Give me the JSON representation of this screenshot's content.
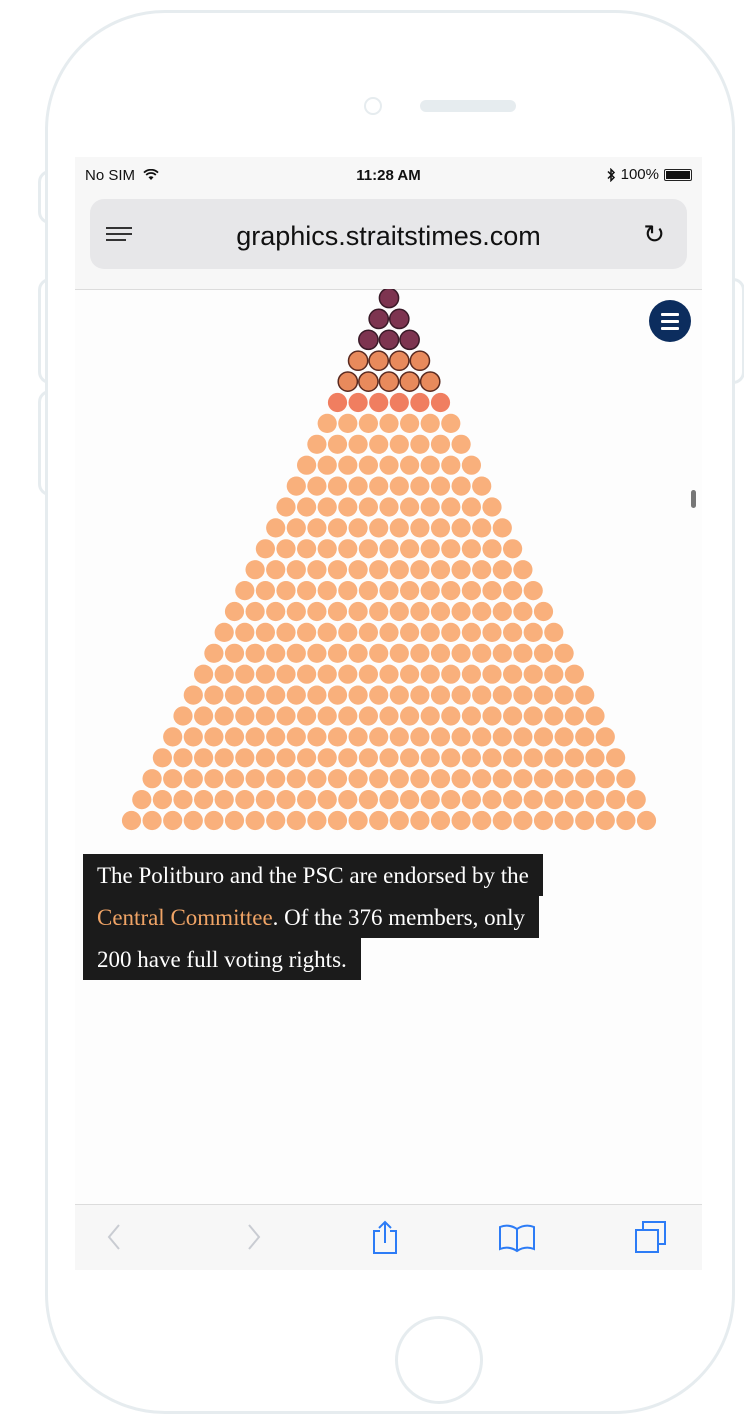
{
  "status_bar": {
    "carrier": "No SIM",
    "time": "11:28 AM",
    "battery": "100%"
  },
  "browser": {
    "url": "graphics.straitstimes.com"
  },
  "icons": {
    "wifi": "wifi-icon",
    "bluetooth": "bluetooth-icon",
    "battery": "battery-icon",
    "reader": "reader-mode-icon",
    "reload": "reload-icon",
    "menu": "hamburger-menu-icon",
    "back": "back-arrow-icon",
    "forward": "forward-arrow-icon",
    "share": "share-icon",
    "bookmarks": "bookmarks-icon",
    "tabs": "tabs-icon"
  },
  "caption": {
    "line1": "The Politburo and the PSC are endorsed by the",
    "line2_highlight": "Central Committee",
    "line2_rest": ". Of the 376 members, only",
    "line3": "200 have full voting rights."
  },
  "colors": {
    "psc": "#7d3450",
    "politburo_outlined": "#e88a5c",
    "upper": "#f07e60",
    "committee": "#f9b07c",
    "menu_button": "#0c2d5e",
    "highlight": "#f0a466"
  }
}
